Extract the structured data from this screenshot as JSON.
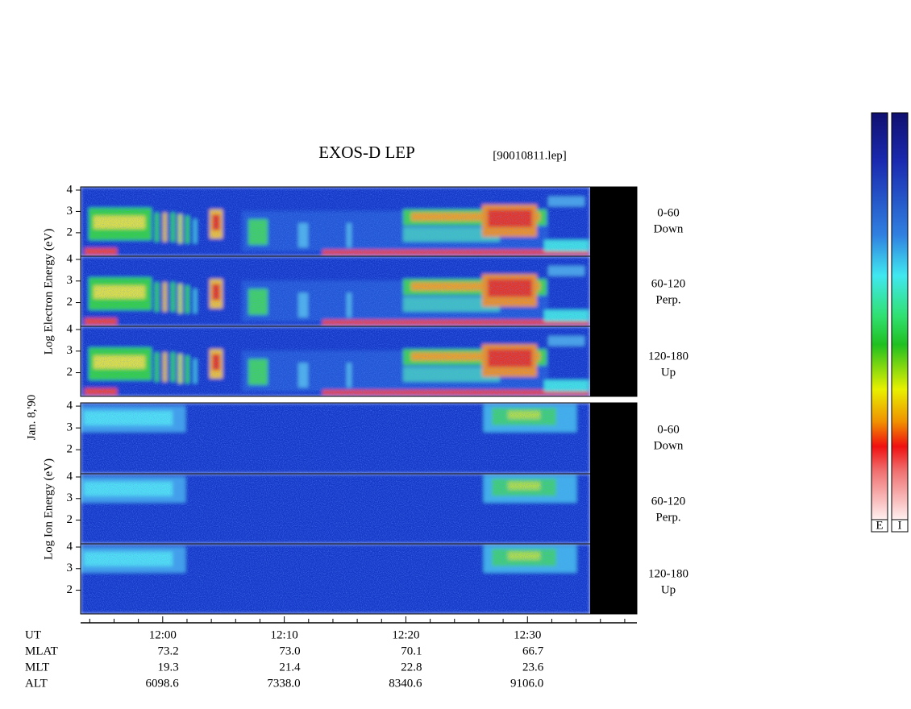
{
  "title": "EXOS-D LEP",
  "file": "[90010811.lep]",
  "date_label": "Jan. 8,'90",
  "chart_data": {
    "type": "spectrogram",
    "electron_label": "Log Electron Energy (eV)",
    "ion_label": "Log Ion Energy (eV)",
    "colorbar_labels": [
      "E",
      "I"
    ],
    "panels": [
      {
        "label": [
          "0-60",
          "Down"
        ],
        "ylim": [
          0.9,
          4.15
        ],
        "yticks": [
          2,
          3,
          4
        ]
      },
      {
        "label": [
          "60-120",
          "Perp."
        ],
        "ylim": [
          0.9,
          4.15
        ],
        "yticks": [
          2,
          3,
          4
        ]
      },
      {
        "label": [
          "120-180",
          "Up"
        ],
        "ylim": [
          0.9,
          4.15
        ],
        "yticks": [
          2,
          3,
          4
        ]
      },
      {
        "label": [
          "0-60",
          "Down"
        ],
        "ylim": [
          0.9,
          4.15
        ],
        "yticks": [
          2,
          3,
          4
        ]
      },
      {
        "label": [
          "60-120",
          "Perp."
        ],
        "ylim": [
          0.9,
          4.15
        ],
        "yticks": [
          2,
          3,
          4
        ]
      },
      {
        "label": [
          "120-180",
          "Up"
        ],
        "ylim": [
          0.9,
          4.15
        ],
        "yticks": [
          2,
          3,
          4
        ]
      }
    ],
    "xlim": [
      -6.75,
      39
    ],
    "xticks": [
      {
        "value": 0,
        "label": "12:00"
      },
      {
        "value": 10,
        "label": "12:10"
      },
      {
        "value": 20,
        "label": "12:20"
      },
      {
        "value": 30,
        "label": "12:30"
      }
    ],
    "xminorticks": [
      -6,
      -4,
      -2,
      2,
      4,
      6,
      8,
      12,
      14,
      16,
      18,
      22,
      24,
      26,
      28,
      32,
      34,
      36,
      38
    ],
    "orbit": {
      "row_labels": [
        "UT",
        "MLAT",
        "MLT",
        "ALT"
      ],
      "rows": [
        [
          "73.2",
          "73.0",
          "70.1",
          "66.7"
        ],
        [
          "19.3",
          "21.4",
          "22.8",
          "23.6"
        ],
        [
          "6098.6",
          "7338.0",
          "8340.6",
          "9106.0"
        ]
      ]
    }
  }
}
